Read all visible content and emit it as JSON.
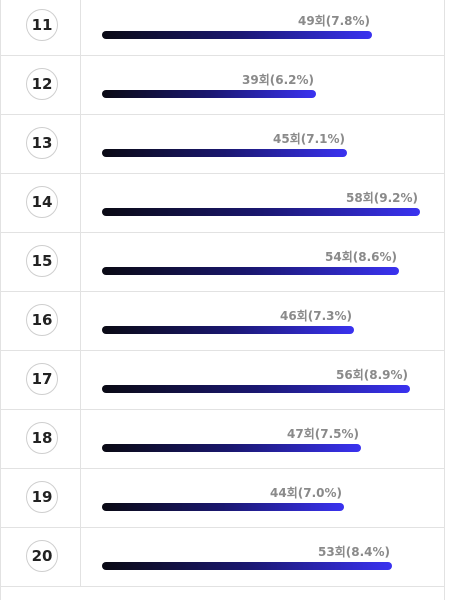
{
  "rows": [
    {
      "number": "11",
      "label": "49회(7.8%)",
      "count": 49,
      "percent": 7.8
    },
    {
      "number": "12",
      "label": "39회(6.2%)",
      "count": 39,
      "percent": 6.2
    },
    {
      "number": "13",
      "label": "45회(7.1%)",
      "count": 45,
      "percent": 7.1
    },
    {
      "number": "14",
      "label": "58회(9.2%)",
      "count": 58,
      "percent": 9.2
    },
    {
      "number": "15",
      "label": "54회(8.6%)",
      "count": 54,
      "percent": 8.6
    },
    {
      "number": "16",
      "label": "46회(7.3%)",
      "count": 46,
      "percent": 7.3
    },
    {
      "number": "17",
      "label": "56회(8.9%)",
      "count": 56,
      "percent": 8.9
    },
    {
      "number": "18",
      "label": "47회(7.5%)",
      "count": 47,
      "percent": 7.5
    },
    {
      "number": "19",
      "label": "44회(7.0%)",
      "count": 44,
      "percent": 7.0
    },
    {
      "number": "20",
      "label": "53회(8.4%)",
      "count": 53,
      "percent": 8.4
    }
  ],
  "colors": {
    "bar_start": "#0a0a14",
    "bar_end": "#3a32f0",
    "label": "#8a8a8a",
    "border": "#e2e2e2"
  }
}
